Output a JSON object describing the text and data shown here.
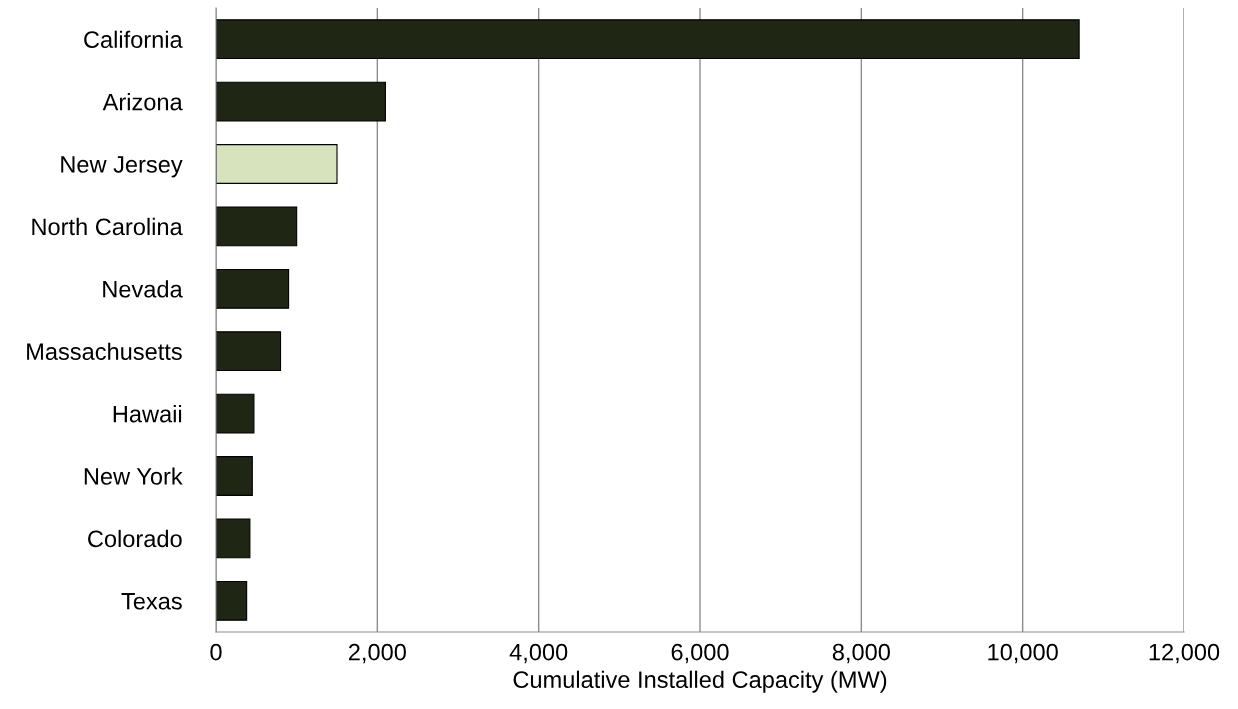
{
  "chart_data": {
    "type": "bar",
    "orientation": "horizontal",
    "xlabel": "Cumulative Installed Capacity (MW)",
    "categories": [
      "California",
      "Arizona",
      "New Jersey",
      "North Carolina",
      "Nevada",
      "Massachusetts",
      "Hawaii",
      "New York",
      "Colorado",
      "Texas"
    ],
    "values": [
      10700,
      2100,
      1500,
      1000,
      900,
      800,
      470,
      450,
      420,
      380
    ],
    "colors": [
      "#1f2613",
      "#1f2613",
      "#d6e3bc",
      "#1f2613",
      "#1f2613",
      "#1f2613",
      "#1f2613",
      "#1f2613",
      "#1f2613",
      "#1f2613"
    ],
    "xlim": [
      0,
      12000
    ],
    "xticks": [
      {
        "value": 0,
        "label": "0"
      },
      {
        "value": 2000,
        "label": "2,000"
      },
      {
        "value": 4000,
        "label": "4,000"
      },
      {
        "value": 6000,
        "label": "6,000"
      },
      {
        "value": 8000,
        "label": "8,000"
      },
      {
        "value": 10000,
        "label": "10,000"
      },
      {
        "value": 12000,
        "label": "12,000"
      }
    ],
    "grid": "x"
  }
}
